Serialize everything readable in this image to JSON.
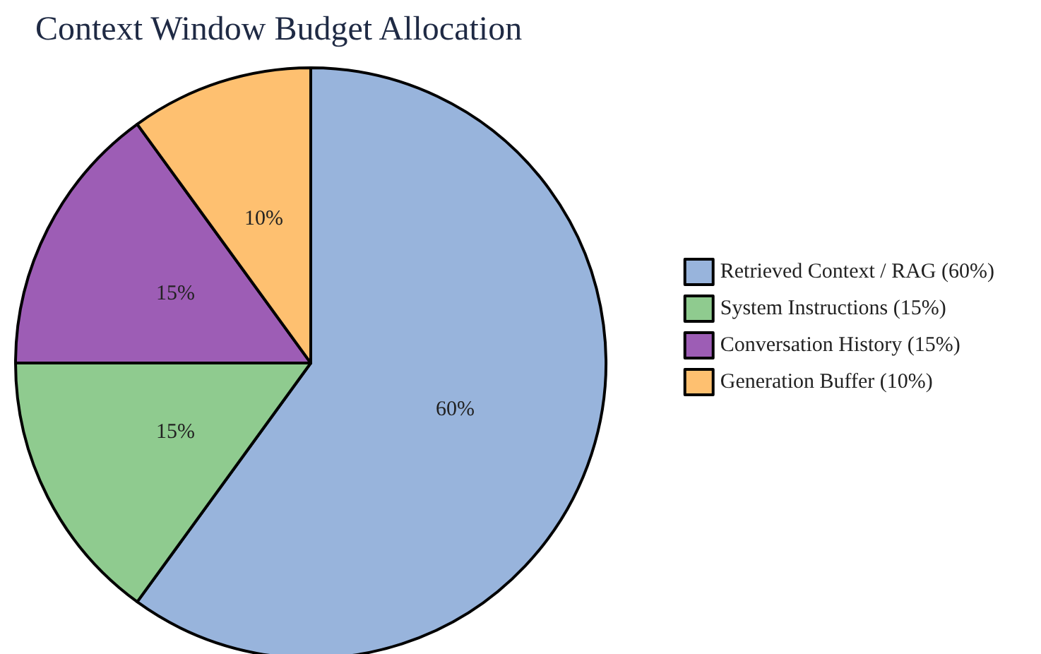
{
  "chart_data": {
    "type": "pie",
    "title": "Context Window Budget Allocation",
    "categories": [
      "Retrieved Context / RAG (60%)",
      "System Instructions (15%)",
      "Conversation History (15%)",
      "Generation Buffer (10%)"
    ],
    "values": [
      60,
      15,
      15,
      10
    ],
    "value_labels": [
      "60%",
      "15%",
      "15%",
      "10%"
    ],
    "colors": [
      "#98b4dc",
      "#8fcb8f",
      "#9d5db5",
      "#fec070"
    ],
    "legend": "right"
  }
}
